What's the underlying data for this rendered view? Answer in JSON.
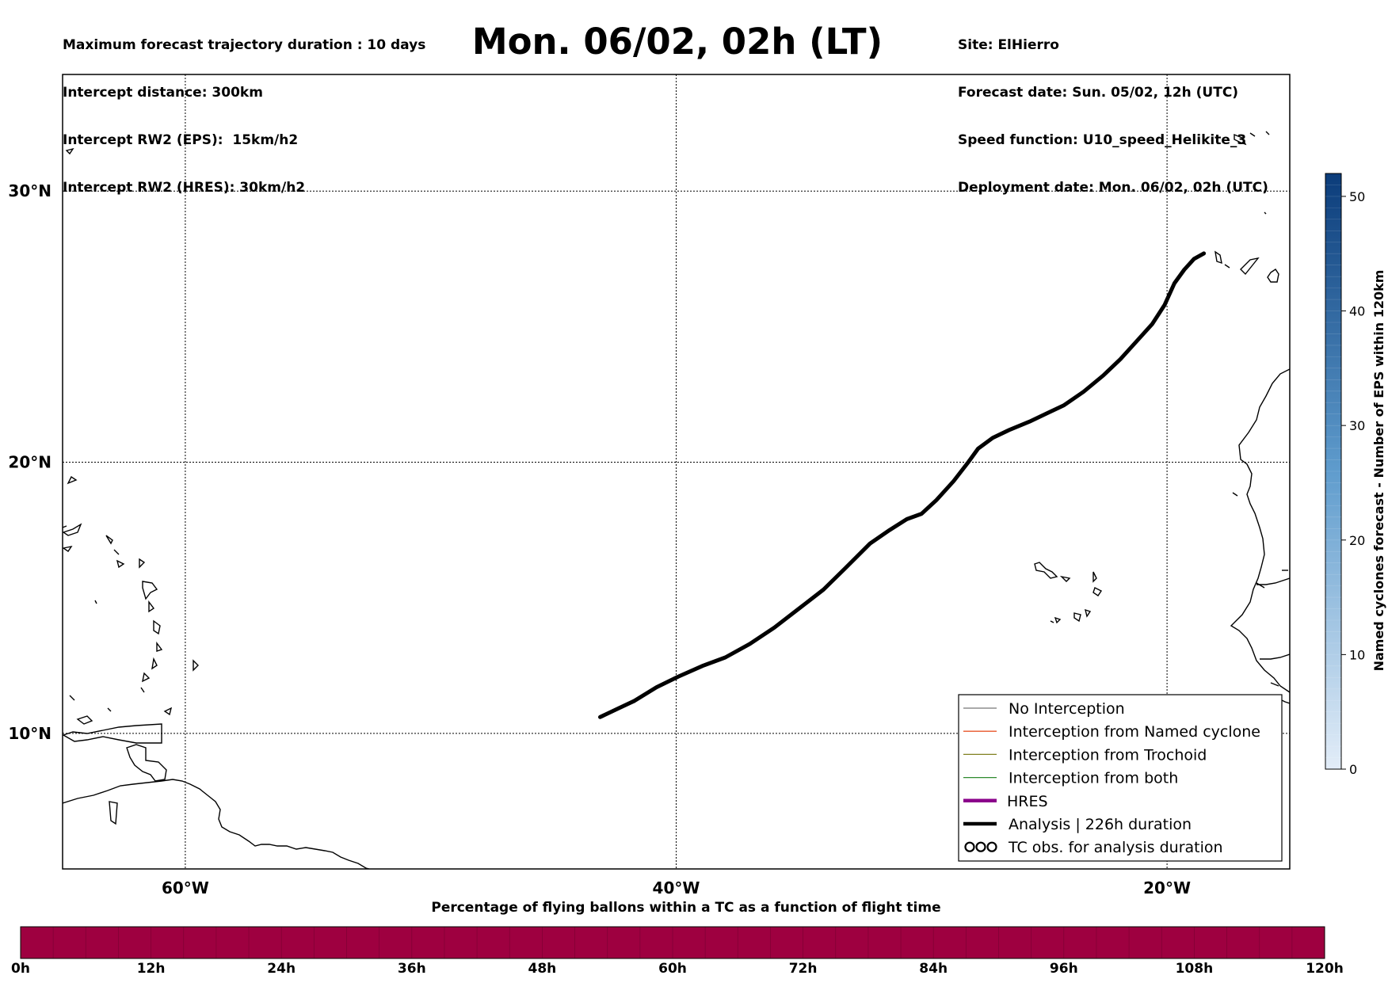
{
  "header": {
    "info_left": [
      "Maximum forecast trajectory duration : 10 days",
      "Intercept distance: 300km",
      "Intercept RW2 (EPS):  15km/h2",
      "Intercept RW2 (HRES): 30km/h2"
    ],
    "info_right": [
      "Site: ElHierro",
      "Forecast date: Sun. 05/02, 12h (UTC)",
      "Speed function: U10_speed_Helikite_3",
      "Deployment date: Mon. 06/02, 02h (UTC)"
    ],
    "title": "Mon. 06/02, 02h (LT)"
  },
  "map": {
    "lon_range": [
      -65,
      -15
    ],
    "lat_range": [
      5,
      34.3
    ],
    "lon_ticks": [
      {
        "value": -60,
        "label": "60°W"
      },
      {
        "value": -40,
        "label": "40°W"
      },
      {
        "value": -20,
        "label": "20°W"
      }
    ],
    "lat_ticks": [
      {
        "value": 30,
        "label": "30°N"
      },
      {
        "value": 20,
        "label": "20°N"
      },
      {
        "value": 10,
        "label": "10°N"
      }
    ],
    "analysis_track": {
      "color": "#000000",
      "points": [
        [
          -43.1,
          10.6
        ],
        [
          -42.4,
          10.9
        ],
        [
          -41.7,
          11.2
        ],
        [
          -40.8,
          11.7
        ],
        [
          -39.9,
          12.1
        ],
        [
          -38.9,
          12.5
        ],
        [
          -38.0,
          12.8
        ],
        [
          -37.0,
          13.3
        ],
        [
          -36.0,
          13.9
        ],
        [
          -35.0,
          14.6
        ],
        [
          -34.0,
          15.3
        ],
        [
          -33.1,
          16.1
        ],
        [
          -32.1,
          17.0
        ],
        [
          -31.3,
          17.5
        ],
        [
          -30.6,
          17.9
        ],
        [
          -30.0,
          18.1
        ],
        [
          -29.4,
          18.6
        ],
        [
          -28.7,
          19.3
        ],
        [
          -28.1,
          20.0
        ],
        [
          -27.7,
          20.5
        ],
        [
          -27.1,
          20.9
        ],
        [
          -26.4,
          21.2
        ],
        [
          -25.6,
          21.5
        ],
        [
          -24.9,
          21.8
        ],
        [
          -24.2,
          22.1
        ],
        [
          -23.4,
          22.6
        ],
        [
          -22.6,
          23.2
        ],
        [
          -21.9,
          23.8
        ],
        [
          -21.2,
          24.5
        ],
        [
          -20.6,
          25.1
        ],
        [
          -20.1,
          25.8
        ],
        [
          -19.7,
          26.6
        ],
        [
          -19.3,
          27.1
        ],
        [
          -18.9,
          27.5
        ],
        [
          -18.5,
          27.7
        ]
      ]
    },
    "colorbar": {
      "label": "Named cyclones forecast - Number of EPS within 120km",
      "min": 0,
      "max": 52,
      "ticks": [
        0,
        10,
        20,
        30,
        40,
        50
      ],
      "color_low": "#e3edf8",
      "color_high": "#0b3c7a"
    },
    "legend": [
      {
        "label": "No Interception",
        "color": "#777777",
        "style": "thin"
      },
      {
        "label": "Interception from Named cyclone",
        "color": "#e8562a",
        "style": "thin"
      },
      {
        "label": "Interception from Trochoid",
        "color": "#808020",
        "style": "thin"
      },
      {
        "label": "Interception from both",
        "color": "#2e8b2e",
        "style": "thin"
      },
      {
        "label": "HRES",
        "color": "#8b008b",
        "style": "thick"
      },
      {
        "label": "Analysis | 226h duration",
        "color": "#000000",
        "style": "thick"
      },
      {
        "label": "TC obs. for analysis duration",
        "color": "#000000",
        "style": "symbol"
      }
    ]
  },
  "time_bar": {
    "title": "Percentage of flying ballons within a TC as a function of flight time",
    "color": "#9e0040",
    "tick_labels": [
      "0h",
      "12h",
      "24h",
      "36h",
      "48h",
      "60h",
      "72h",
      "84h",
      "96h",
      "108h",
      "120h"
    ]
  }
}
